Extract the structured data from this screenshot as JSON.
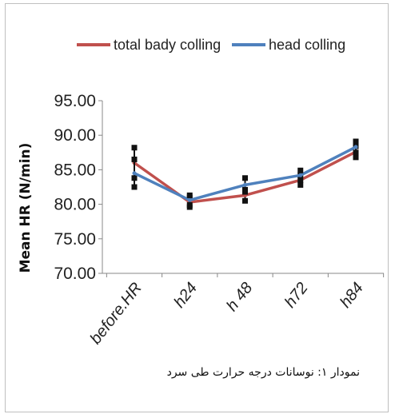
{
  "chart_data": {
    "type": "line",
    "categories": [
      "before.HR",
      "h24",
      "h 48",
      "h72",
      "h84"
    ],
    "series": [
      {
        "name": "total bady colling",
        "color": "#c0504d",
        "values": [
          86.0,
          80.3,
          81.3,
          83.5,
          87.6
        ],
        "error": [
          2.2,
          0.7,
          0.8,
          0.7,
          0.8
        ]
      },
      {
        "name": "head colling",
        "color": "#4f81bd",
        "values": [
          84.5,
          80.6,
          82.8,
          84.2,
          88.3
        ],
        "error": [
          2.0,
          0.7,
          1.0,
          0.7,
          0.8
        ]
      }
    ],
    "ylabel": "Mean HR (N/min)",
    "xlabel": "",
    "ylim": [
      70,
      95
    ],
    "yticks": [
      "95.00",
      "90.00",
      "85.00",
      "80.00",
      "75.00",
      "70.00"
    ],
    "legend_position": "top",
    "grid": false
  },
  "caption": "نمودار ۱: نوسانات درجه حرارت طی سرد"
}
